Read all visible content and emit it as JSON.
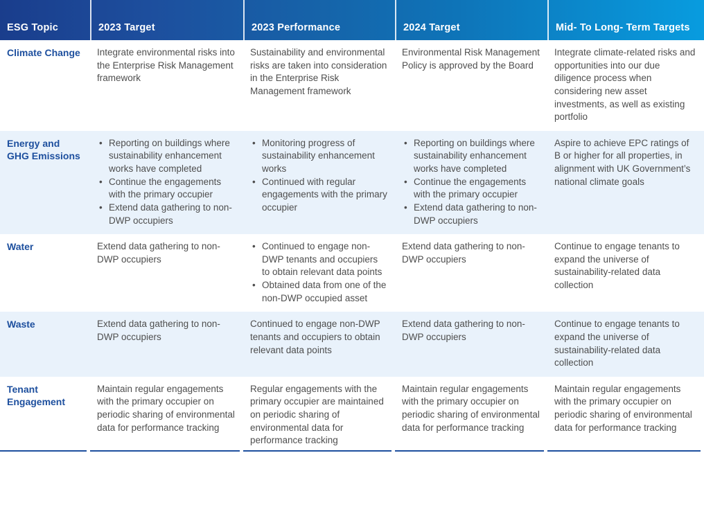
{
  "colors": {
    "header_gradient_start": "#1a3d8c",
    "header_gradient_end": "#089cdf",
    "header_text": "#ffffff",
    "topic_text": "#1d4f9e",
    "alt_row_bg": "#e9f2fb",
    "body_text": "#4e4e4e",
    "bottom_rule": "#1d4f9e"
  },
  "table": {
    "headers": [
      "ESG Topic",
      "2023 Target",
      "2023 Performance",
      "2024 Target",
      "Mid- To Long- Term Targets"
    ],
    "rows": [
      {
        "topic": "Climate Change",
        "cells": [
          {
            "text": "Integrate environmental risks into the Enterprise Risk Management framework"
          },
          {
            "text": "Sustainability and environmental risks are taken into consideration in the Enterprise Risk Management framework"
          },
          {
            "text": "Environmental Risk Management Policy is approved by the Board"
          },
          {
            "text": "Integrate climate-related risks and opportunities into our due diligence process when considering new asset investments, as well as existing portfolio"
          }
        ]
      },
      {
        "topic": "Energy and GHG Emissions",
        "cells": [
          {
            "bullets": [
              "Reporting on buildings where sustainability enhancement works have completed",
              "Continue the engagements with the primary occupier",
              "Extend data gathering to non-DWP occupiers"
            ]
          },
          {
            "bullets": [
              "Monitoring progress of sustainability enhancement works",
              "Continued with regular engagements with the primary occupier"
            ]
          },
          {
            "bullets": [
              "Reporting on buildings where sustainability enhancement works have completed",
              "Continue the engagements with the primary occupier",
              "Extend data gathering to non-DWP occupiers"
            ]
          },
          {
            "text": "Aspire to achieve EPC ratings of B or higher for all properties, in alignment with UK Government’s national climate goals"
          }
        ]
      },
      {
        "topic": "Water",
        "cells": [
          {
            "text": "Extend data gathering to non-DWP occupiers"
          },
          {
            "bullets": [
              "Continued to engage non-DWP tenants and occupiers to obtain relevant data points",
              "Obtained data from one of the non-DWP occupied asset"
            ]
          },
          {
            "text": "Extend data gathering to non-DWP occupiers"
          },
          {
            "text": "Continue to engage tenants to expand the universe of sustainability-related data collection"
          }
        ]
      },
      {
        "topic": "Waste",
        "cells": [
          {
            "text": "Extend data gathering to non-DWP occupiers"
          },
          {
            "text": "Continued to engage non-DWP tenants and occupiers to obtain relevant data points"
          },
          {
            "text": "Extend data gathering to non-DWP occupiers"
          },
          {
            "text": "Continue to engage tenants to expand the universe of sustainability-related data collection"
          }
        ]
      },
      {
        "topic": "Tenant Engagement",
        "cells": [
          {
            "text": "Maintain regular engagements with the primary occupier on periodic sharing of environmental data for performance tracking"
          },
          {
            "text": "Regular engagements with the primary occupier are maintained on periodic sharing of environmental data for performance tracking"
          },
          {
            "text": "Maintain regular engagements with the primary occupier on periodic sharing of environmental data for performance  tracking"
          },
          {
            "text": "Maintain regular engagements with the primary occupier on periodic sharing of environmental data for performance  tracking"
          }
        ]
      }
    ]
  }
}
